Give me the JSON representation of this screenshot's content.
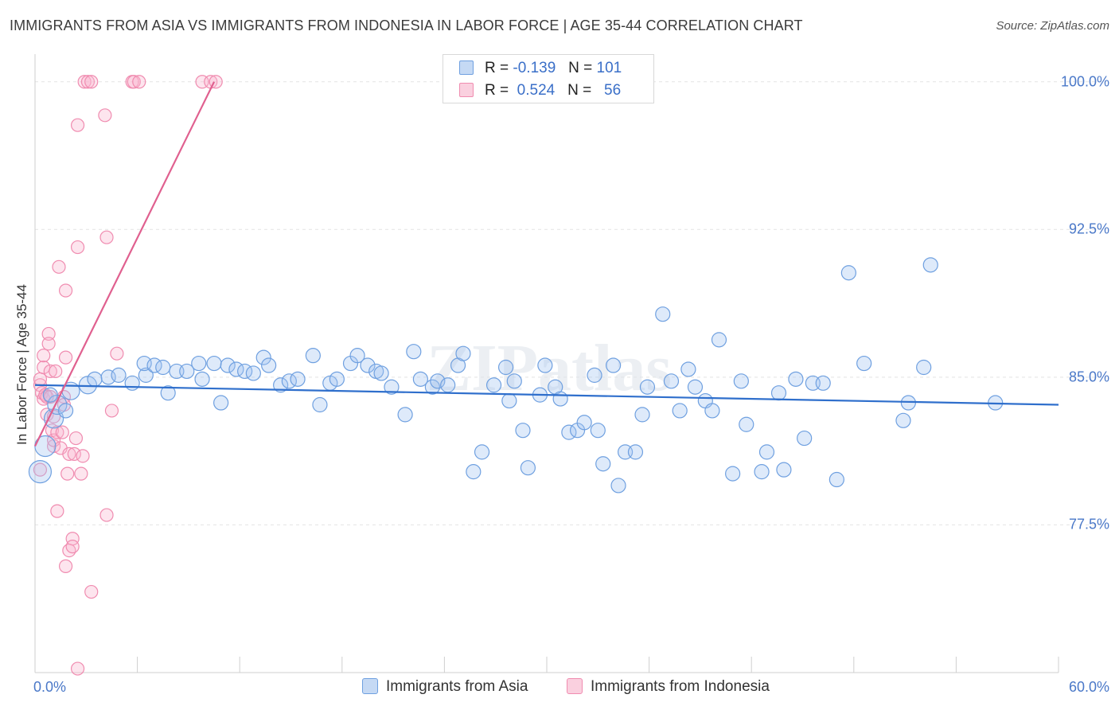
{
  "chart_data": {
    "type": "scatter",
    "title": "IMMIGRANTS FROM ASIA VS IMMIGRANTS FROM INDONESIA IN LABOR FORCE | AGE 35-44 CORRELATION CHART",
    "source": "Source: ZipAtlas.com",
    "xlabel": "",
    "ylabel": "In Labor Force | Age 35-44",
    "xlim": [
      0,
      60
    ],
    "ylim": [
      70,
      101
    ],
    "x_tick_labels": [
      "0.0%",
      "60.0%"
    ],
    "y_ticks": [
      77.5,
      85.0,
      92.5,
      100.0
    ],
    "y_tick_labels": [
      "77.5%",
      "85.0%",
      "92.5%",
      "100.0%"
    ],
    "watermark": "ZIPatlas",
    "legend": [
      {
        "r_label": "R =",
        "r_value": "-0.139",
        "n_label": "N =",
        "n_value": "101"
      },
      {
        "r_label": "R =",
        "r_value": "0.524",
        "n_label": "N =",
        "n_value": "56"
      }
    ],
    "colors": {
      "asia": "#6fa0e0",
      "asia_line": "#2f6fcc",
      "indonesia": "#f08cb0",
      "indonesia_line": "#e0608f",
      "tick_text": "#4a78c8"
    },
    "series": [
      {
        "name": "Immigrants from Asia",
        "trend": {
          "x": [
            0.0,
            60.0
          ],
          "y": [
            84.6,
            83.6
          ]
        },
        "points": [
          [
            0.3,
            80.2
          ],
          [
            0.6,
            81.5
          ],
          [
            1.1,
            82.9
          ],
          [
            1.3,
            83.6
          ],
          [
            2.1,
            84.3
          ],
          [
            3.1,
            84.6
          ],
          [
            3.5,
            84.9
          ],
          [
            4.3,
            85.0
          ],
          [
            4.9,
            85.1
          ],
          [
            5.7,
            84.7
          ],
          [
            6.5,
            85.1
          ],
          [
            6.4,
            85.7
          ],
          [
            7.0,
            85.6
          ],
          [
            7.5,
            85.5
          ],
          [
            7.8,
            84.2
          ],
          [
            8.3,
            85.3
          ],
          [
            8.9,
            85.3
          ],
          [
            9.6,
            85.7
          ],
          [
            9.8,
            84.9
          ],
          [
            10.5,
            85.7
          ],
          [
            10.9,
            83.7
          ],
          [
            11.3,
            85.6
          ],
          [
            11.8,
            85.4
          ],
          [
            12.3,
            85.3
          ],
          [
            12.8,
            85.2
          ],
          [
            13.4,
            86.0
          ],
          [
            13.7,
            85.6
          ],
          [
            14.4,
            84.6
          ],
          [
            14.9,
            84.8
          ],
          [
            15.4,
            84.9
          ],
          [
            16.3,
            86.1
          ],
          [
            16.7,
            83.6
          ],
          [
            17.3,
            84.7
          ],
          [
            17.7,
            84.9
          ],
          [
            18.5,
            85.7
          ],
          [
            18.9,
            86.1
          ],
          [
            19.5,
            85.6
          ],
          [
            20.0,
            85.3
          ],
          [
            20.3,
            85.2
          ],
          [
            20.9,
            84.5
          ],
          [
            21.7,
            83.1
          ],
          [
            22.2,
            86.3
          ],
          [
            22.6,
            84.9
          ],
          [
            23.3,
            84.5
          ],
          [
            23.6,
            84.8
          ],
          [
            24.2,
            84.6
          ],
          [
            24.8,
            85.6
          ],
          [
            25.1,
            86.2
          ],
          [
            25.7,
            80.2
          ],
          [
            26.2,
            81.2
          ],
          [
            26.9,
            84.6
          ],
          [
            27.6,
            85.5
          ],
          [
            27.8,
            83.8
          ],
          [
            28.1,
            84.8
          ],
          [
            28.6,
            82.3
          ],
          [
            28.9,
            80.4
          ],
          [
            29.6,
            84.1
          ],
          [
            29.9,
            85.6
          ],
          [
            30.5,
            84.5
          ],
          [
            30.8,
            83.9
          ],
          [
            31.3,
            82.2
          ],
          [
            31.8,
            82.3
          ],
          [
            32.2,
            82.7
          ],
          [
            32.8,
            85.1
          ],
          [
            33.0,
            82.3
          ],
          [
            33.3,
            80.6
          ],
          [
            33.9,
            85.6
          ],
          [
            34.2,
            79.5
          ],
          [
            34.6,
            81.2
          ],
          [
            35.2,
            81.2
          ],
          [
            35.6,
            83.1
          ],
          [
            35.9,
            84.5
          ],
          [
            36.8,
            88.2
          ],
          [
            37.3,
            84.8
          ],
          [
            37.8,
            83.3
          ],
          [
            38.3,
            85.4
          ],
          [
            38.7,
            84.5
          ],
          [
            39.3,
            83.8
          ],
          [
            39.7,
            83.3
          ],
          [
            40.1,
            86.9
          ],
          [
            40.9,
            80.1
          ],
          [
            41.4,
            84.8
          ],
          [
            41.7,
            82.6
          ],
          [
            42.6,
            80.2
          ],
          [
            42.9,
            81.2
          ],
          [
            43.6,
            84.2
          ],
          [
            43.9,
            80.3
          ],
          [
            44.6,
            84.9
          ],
          [
            45.1,
            81.9
          ],
          [
            45.6,
            84.7
          ],
          [
            46.2,
            84.7
          ],
          [
            47.0,
            79.8
          ],
          [
            47.7,
            90.3
          ],
          [
            48.6,
            85.7
          ],
          [
            50.9,
            82.8
          ],
          [
            51.2,
            83.7
          ],
          [
            52.1,
            85.5
          ],
          [
            52.5,
            90.7
          ],
          [
            56.3,
            83.7
          ],
          [
            1.8,
            83.3
          ],
          [
            0.9,
            84.1
          ]
        ]
      },
      {
        "name": "Immigrants from Indonesia",
        "trend": {
          "x": [
            0.0,
            10.5
          ],
          "y": [
            81.5,
            100.0
          ]
        },
        "points": [
          [
            0.3,
            80.3
          ],
          [
            0.3,
            84.6
          ],
          [
            0.3,
            84.9
          ],
          [
            0.4,
            84.2
          ],
          [
            0.5,
            85.5
          ],
          [
            0.5,
            86.1
          ],
          [
            0.5,
            83.9
          ],
          [
            0.6,
            84.1
          ],
          [
            0.7,
            83.1
          ],
          [
            0.7,
            84.0
          ],
          [
            0.8,
            87.2
          ],
          [
            0.8,
            86.7
          ],
          [
            0.9,
            85.3
          ],
          [
            0.9,
            84.0
          ],
          [
            1.0,
            82.3
          ],
          [
            1.1,
            81.5
          ],
          [
            1.1,
            81.8
          ],
          [
            1.1,
            83.0
          ],
          [
            1.2,
            85.3
          ],
          [
            1.3,
            82.2
          ],
          [
            1.3,
            78.2
          ],
          [
            1.4,
            90.6
          ],
          [
            1.5,
            81.4
          ],
          [
            1.6,
            82.2
          ],
          [
            1.7,
            84.0
          ],
          [
            1.7,
            83.6
          ],
          [
            1.8,
            75.4
          ],
          [
            1.8,
            86.0
          ],
          [
            1.8,
            89.4
          ],
          [
            1.9,
            80.1
          ],
          [
            2.0,
            76.2
          ],
          [
            2.0,
            81.1
          ],
          [
            2.2,
            76.8
          ],
          [
            2.2,
            76.4
          ],
          [
            2.3,
            81.1
          ],
          [
            2.4,
            81.9
          ],
          [
            2.5,
            97.8
          ],
          [
            2.5,
            91.6
          ],
          [
            2.5,
            70.2
          ],
          [
            2.7,
            80.1
          ],
          [
            2.8,
            81.0
          ],
          [
            2.9,
            100.0
          ],
          [
            3.1,
            100.0
          ],
          [
            3.3,
            100.0
          ],
          [
            3.3,
            74.1
          ],
          [
            4.1,
            98.3
          ],
          [
            4.2,
            92.1
          ],
          [
            4.2,
            78.0
          ],
          [
            4.5,
            83.3
          ],
          [
            4.8,
            86.2
          ],
          [
            5.7,
            100.0
          ],
          [
            5.8,
            100.0
          ],
          [
            6.1,
            100.0
          ],
          [
            9.8,
            100.0
          ],
          [
            10.3,
            100.0
          ],
          [
            10.6,
            100.0
          ]
        ]
      }
    ]
  },
  "bottom_legend": {
    "asia_label": "Immigrants from Asia",
    "indonesia_label": "Immigrants from Indonesia"
  }
}
